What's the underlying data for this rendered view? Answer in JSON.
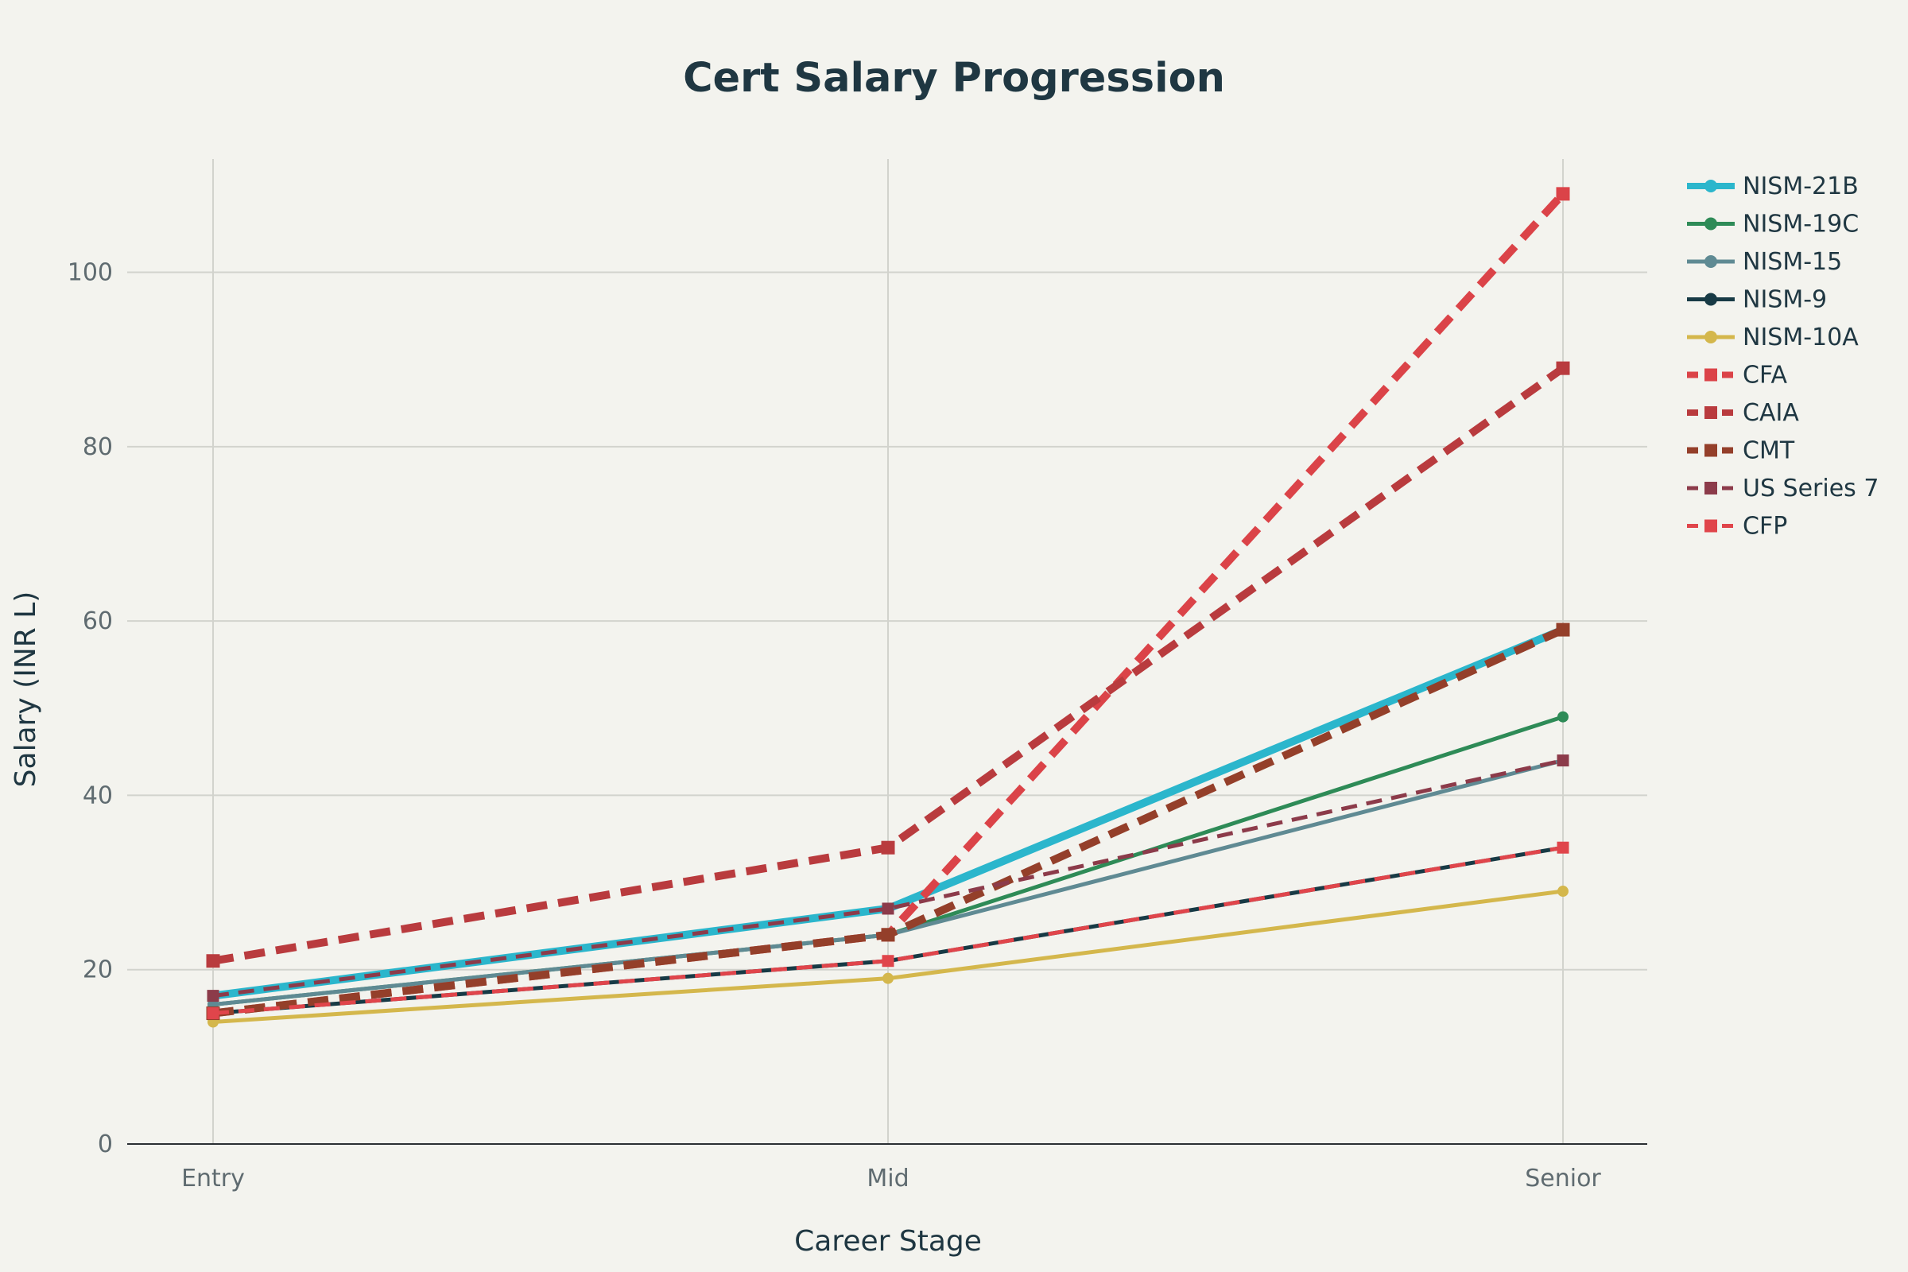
{
  "chart_data": {
    "type": "line",
    "title": "Cert Salary Progression",
    "xlabel": "Career Stage",
    "ylabel": "Salary (INR L)",
    "categories": [
      "Entry",
      "Mid",
      "Senior"
    ],
    "ylim": [
      0,
      113
    ],
    "yticks": [
      0,
      20,
      40,
      60,
      80,
      100
    ],
    "grid": true,
    "legend_position": "right",
    "series": [
      {
        "name": "NISM-21B",
        "values": [
          17,
          27,
          59
        ],
        "color": "#2bb6cc",
        "dash": "solid",
        "width_class": "thick",
        "marker": "circle"
      },
      {
        "name": "NISM-19C",
        "values": [
          16,
          24,
          49
        ],
        "color": "#2e8b57",
        "dash": "solid",
        "width_class": "medium",
        "marker": "circle"
      },
      {
        "name": "NISM-15",
        "values": [
          16,
          24,
          44
        ],
        "color": "#5f8a93",
        "dash": "solid",
        "width_class": "medium",
        "marker": "circle"
      },
      {
        "name": "NISM-9",
        "values": [
          15,
          21,
          34
        ],
        "color": "#173a45",
        "dash": "solid",
        "width_class": "medium",
        "marker": "circle"
      },
      {
        "name": "NISM-10A",
        "values": [
          14,
          19,
          29
        ],
        "color": "#d4b74c",
        "dash": "solid",
        "width_class": "medium",
        "marker": "circle"
      },
      {
        "name": "CFA",
        "values": [
          15,
          24,
          109
        ],
        "color": "#db4348",
        "dash": "dash",
        "width_class": "thick",
        "marker": "square"
      },
      {
        "name": "CAIA",
        "values": [
          21,
          34,
          89
        ],
        "color": "#b93b3e",
        "dash": "dash",
        "width_class": "thick",
        "marker": "square"
      },
      {
        "name": "CMT",
        "values": [
          15,
          24,
          59
        ],
        "color": "#943f2a",
        "dash": "dash",
        "width_class": "thick",
        "marker": "square"
      },
      {
        "name": "US Series 7",
        "values": [
          17,
          27,
          44
        ],
        "color": "#8c3b4a",
        "dash": "dash",
        "width_class": "medium",
        "marker": "square"
      },
      {
        "name": "CFP",
        "values": [
          15,
          21,
          34
        ],
        "color": "#e0454b",
        "dash": "dash",
        "width_class": "medium",
        "marker": "square"
      }
    ]
  }
}
